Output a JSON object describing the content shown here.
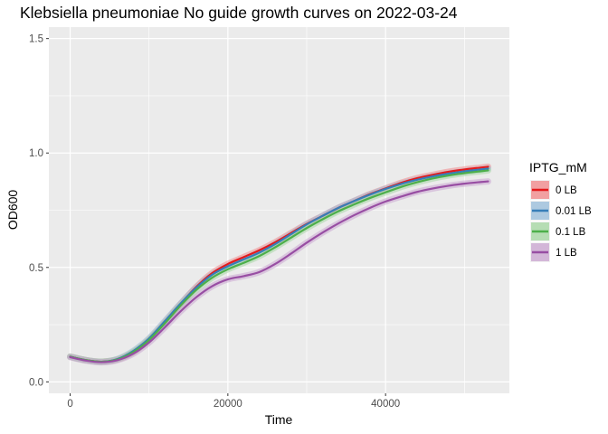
{
  "chart_data": {
    "type": "line",
    "title": "Klebsiella pneumoniae No guide growth curves on 2022-03-24",
    "xlabel": "Time",
    "ylabel": "OD600",
    "xlim": [
      -2700,
      55700
    ],
    "ylim": [
      -0.05,
      1.55
    ],
    "x_ticks": [
      0,
      20000,
      40000
    ],
    "x_tick_labels": [
      "0",
      "20000",
      "40000"
    ],
    "y_ticks": [
      0.0,
      0.5,
      1.0,
      1.5
    ],
    "y_tick_labels": [
      "0.0",
      "0.5",
      "1.0",
      "1.5"
    ],
    "grid": true,
    "background": "#ebebeb",
    "legend": {
      "title": "IPTG_mM",
      "position": "right"
    },
    "x": [
      0,
      2000,
      4000,
      6000,
      8000,
      10000,
      12000,
      14000,
      16000,
      18000,
      20000,
      22000,
      24000,
      26000,
      28000,
      30000,
      32000,
      34000,
      36000,
      38000,
      40000,
      42000,
      44000,
      46000,
      48000,
      50000,
      52000,
      53000
    ],
    "series": [
      {
        "name": "0 LB",
        "color": "#e41a1c",
        "band_color": "#f08b8c",
        "values": [
          0.11,
          0.095,
          0.088,
          0.098,
          0.13,
          0.185,
          0.26,
          0.34,
          0.415,
          0.475,
          0.515,
          0.545,
          0.575,
          0.61,
          0.65,
          0.69,
          0.725,
          0.76,
          0.79,
          0.82,
          0.845,
          0.87,
          0.89,
          0.905,
          0.918,
          0.928,
          0.936,
          0.94
        ]
      },
      {
        "name": "0.01 LB",
        "color": "#377eb8",
        "band_color": "#9bbedb",
        "values": [
          0.11,
          0.095,
          0.088,
          0.1,
          0.135,
          0.19,
          0.265,
          0.342,
          0.412,
          0.468,
          0.505,
          0.535,
          0.565,
          0.602,
          0.645,
          0.688,
          0.725,
          0.76,
          0.79,
          0.818,
          0.843,
          0.865,
          0.883,
          0.898,
          0.91,
          0.92,
          0.928,
          0.932
        ]
      },
      {
        "name": "0.1 LB",
        "color": "#4daf4a",
        "band_color": "#a6d7a4",
        "values": [
          0.11,
          0.095,
          0.088,
          0.098,
          0.13,
          0.183,
          0.255,
          0.333,
          0.402,
          0.455,
          0.492,
          0.52,
          0.55,
          0.588,
          0.63,
          0.672,
          0.71,
          0.745,
          0.775,
          0.803,
          0.828,
          0.852,
          0.872,
          0.889,
          0.902,
          0.912,
          0.92,
          0.924
        ]
      },
      {
        "name": "1 LB",
        "color": "#984ea3",
        "band_color": "#cba6d1",
        "values": [
          0.108,
          0.093,
          0.086,
          0.095,
          0.123,
          0.172,
          0.238,
          0.308,
          0.37,
          0.418,
          0.448,
          0.462,
          0.48,
          0.515,
          0.56,
          0.608,
          0.652,
          0.692,
          0.728,
          0.76,
          0.788,
          0.81,
          0.83,
          0.845,
          0.857,
          0.866,
          0.873,
          0.876
        ]
      }
    ]
  }
}
